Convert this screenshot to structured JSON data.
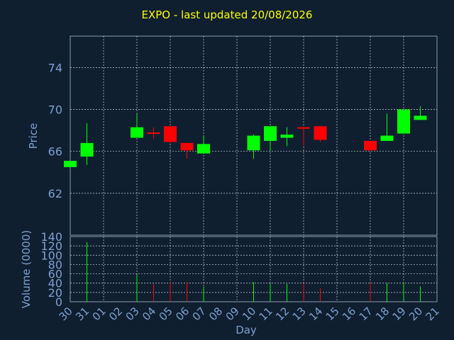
{
  "title": "EXPO - last updated 20/08/2026",
  "colors": {
    "background": "#0f1f30",
    "title": "#ffff00",
    "axis_text": "#7f9fd0",
    "grid": "#ffffff",
    "up": "#00ff00",
    "down": "#ff0000"
  },
  "chart_data": [
    {
      "type": "candlestick",
      "ylabel": "Price",
      "ylim": [
        58,
        77
      ],
      "yticks": [
        62,
        66,
        70,
        74
      ],
      "grid": true,
      "x": [
        "30",
        "31",
        "01",
        "02",
        "03",
        "04",
        "05",
        "06",
        "07",
        "08",
        "09",
        "10",
        "11",
        "12",
        "13",
        "14",
        "15",
        "16",
        "17",
        "18",
        "19",
        "20",
        "21"
      ],
      "candles": [
        {
          "x": "30",
          "open": 64.5,
          "high": 65.1,
          "low": 64.5,
          "close": 65.1
        },
        {
          "x": "31",
          "open": 65.5,
          "high": 68.7,
          "low": 64.7,
          "close": 66.8
        },
        {
          "x": "03",
          "open": 67.3,
          "high": 69.6,
          "low": 67.3,
          "close": 68.3
        },
        {
          "x": "04",
          "open": 67.8,
          "high": 68.3,
          "low": 67.2,
          "close": 67.7
        },
        {
          "x": "05",
          "open": 68.4,
          "high": 68.4,
          "low": 66.8,
          "close": 66.9
        },
        {
          "x": "06",
          "open": 66.8,
          "high": 66.8,
          "low": 65.3,
          "close": 66.1
        },
        {
          "x": "07",
          "open": 65.8,
          "high": 67.5,
          "low": 65.8,
          "close": 66.7
        },
        {
          "x": "10",
          "open": 66.1,
          "high": 67.6,
          "low": 65.3,
          "close": 67.5
        },
        {
          "x": "11",
          "open": 67.0,
          "high": 68.4,
          "low": 66.0,
          "close": 68.4
        },
        {
          "x": "12",
          "open": 67.3,
          "high": 68.3,
          "low": 66.5,
          "close": 67.6
        },
        {
          "x": "13",
          "open": 68.3,
          "high": 68.4,
          "low": 66.5,
          "close": 68.2
        },
        {
          "x": "14",
          "open": 68.4,
          "high": 68.4,
          "low": 66.9,
          "close": 67.1
        },
        {
          "x": "17",
          "open": 67.0,
          "high": 67.0,
          "low": 66.0,
          "close": 66.1
        },
        {
          "x": "18",
          "open": 67.0,
          "high": 69.6,
          "low": 67.0,
          "close": 67.5
        },
        {
          "x": "19",
          "open": 67.7,
          "high": 70.0,
          "low": 67.7,
          "close": 70.0
        },
        {
          "x": "20",
          "open": 69.0,
          "high": 70.3,
          "low": 69.0,
          "close": 69.4
        }
      ]
    },
    {
      "type": "bar",
      "xlabel": "Day",
      "ylabel": "Volume (0000)",
      "ylim": [
        0,
        140
      ],
      "yticks": [
        0,
        20,
        40,
        60,
        80,
        100,
        120,
        140
      ],
      "grid": true,
      "categories": [
        "30",
        "31",
        "01",
        "02",
        "03",
        "04",
        "05",
        "06",
        "07",
        "08",
        "09",
        "10",
        "11",
        "12",
        "13",
        "14",
        "15",
        "16",
        "17",
        "18",
        "19",
        "20",
        "21"
      ],
      "bars": [
        {
          "x": "31",
          "value": 128,
          "direction": "up"
        },
        {
          "x": "03",
          "value": 58,
          "direction": "up"
        },
        {
          "x": "04",
          "value": 38,
          "direction": "down"
        },
        {
          "x": "05",
          "value": 42,
          "direction": "down"
        },
        {
          "x": "06",
          "value": 42,
          "direction": "down"
        },
        {
          "x": "07",
          "value": 32,
          "direction": "up"
        },
        {
          "x": "10",
          "value": 42,
          "direction": "up"
        },
        {
          "x": "11",
          "value": 39,
          "direction": "up"
        },
        {
          "x": "12",
          "value": 38,
          "direction": "up"
        },
        {
          "x": "13",
          "value": 40,
          "direction": "down"
        },
        {
          "x": "14",
          "value": 29,
          "direction": "down"
        },
        {
          "x": "17",
          "value": 41,
          "direction": "down"
        },
        {
          "x": "18",
          "value": 40,
          "direction": "up"
        },
        {
          "x": "19",
          "value": 41,
          "direction": "up"
        },
        {
          "x": "20",
          "value": 33,
          "direction": "up"
        }
      ]
    }
  ]
}
